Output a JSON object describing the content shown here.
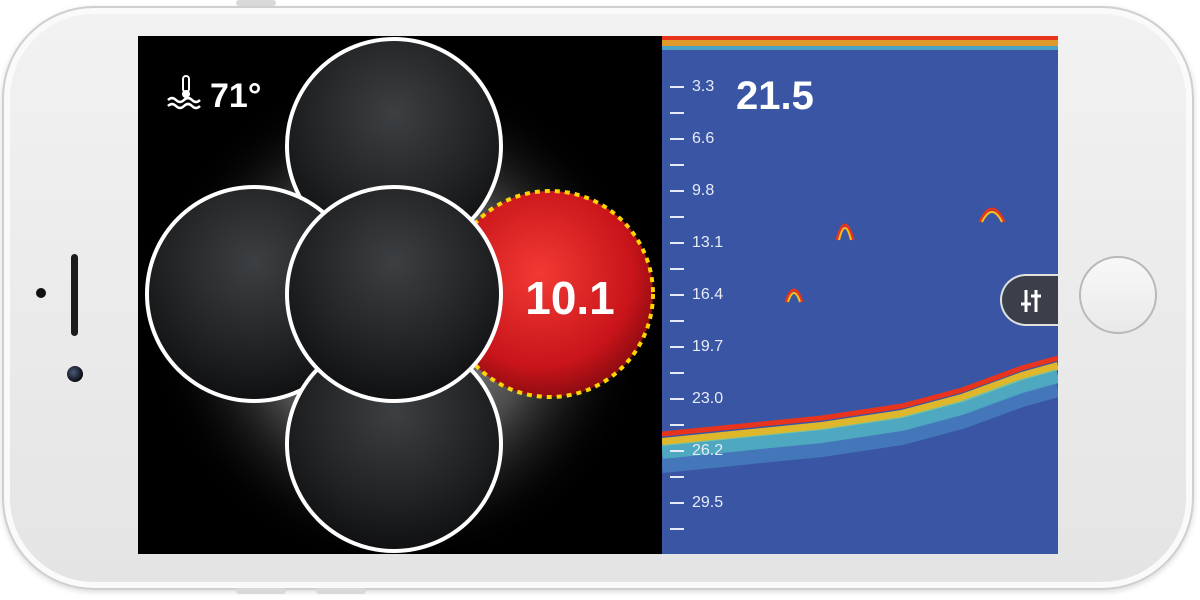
{
  "water_temp": {
    "value": "71°"
  },
  "depth": {
    "value": "21.5"
  },
  "flasher": {
    "depth_reading": "10.1"
  },
  "depth_scale": {
    "labels": [
      "3.3",
      "6.6",
      "9.8",
      "13.1",
      "16.4",
      "19.7",
      "23.0",
      "26.2",
      "29.5"
    ]
  },
  "icons": {
    "water_temp": "thermometer-water-icon",
    "settings": "sliders-icon"
  },
  "colors": {
    "flasher_target": "#d2161b",
    "sonar_background": "#3a55a4",
    "dotted_ring": "#ffd400"
  }
}
